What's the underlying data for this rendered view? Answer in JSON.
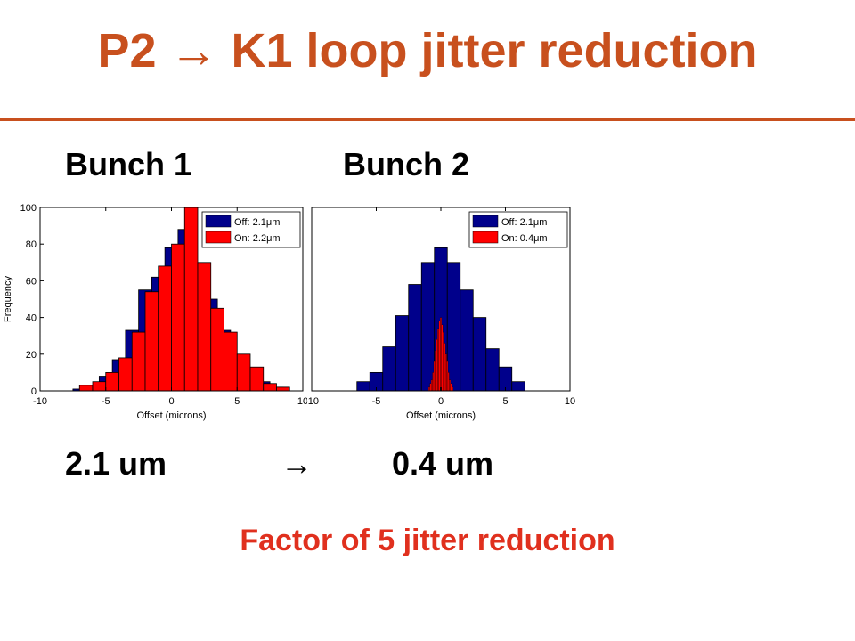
{
  "slide": {
    "title": "P2 → K1 loop jitter reduction",
    "bunch1_label": "Bunch 1",
    "bunch2_label": "Bunch 2",
    "value_before": "2.1 um",
    "arrow": "→",
    "value_after": "0.4 um",
    "conclusion": "Factor of 5 jitter reduction",
    "colors": {
      "title": "#c8501e",
      "conclusion": "#e0301e",
      "off": "#00008b",
      "on": "#ff0000"
    }
  },
  "chart_data": [
    {
      "type": "bar",
      "panel": "Bunch 1",
      "xlabel": "Offset (microns)",
      "ylabel": "Frequency",
      "xlim": [
        -10,
        10
      ],
      "ylim": [
        0,
        100
      ],
      "xticks": [
        -10,
        -5,
        0,
        5,
        10
      ],
      "yticks": [
        0,
        20,
        40,
        60,
        80,
        100
      ],
      "legend_position": "top-right",
      "series": [
        {
          "name": "Off: 2.1μm",
          "color": "#00008b",
          "bin_width": 1,
          "bins": [
            [
              -7,
              1
            ],
            [
              -6,
              3
            ],
            [
              -5,
              8
            ],
            [
              -4,
              17
            ],
            [
              -3,
              33
            ],
            [
              -2,
              55
            ],
            [
              -1,
              62
            ],
            [
              0,
              78
            ],
            [
              1,
              88
            ],
            [
              2,
              64
            ],
            [
              3,
              50
            ],
            [
              4,
              33
            ],
            [
              5,
              18
            ],
            [
              6,
              10
            ],
            [
              7,
              5
            ],
            [
              8,
              2
            ]
          ]
        },
        {
          "name": "On: 2.2μm",
          "color": "#ff0000",
          "bin_width": 1,
          "bins": [
            [
              -6.5,
              3
            ],
            [
              -5.5,
              5
            ],
            [
              -4.5,
              10
            ],
            [
              -3.5,
              18
            ],
            [
              -2.5,
              32
            ],
            [
              -1.5,
              54
            ],
            [
              -0.5,
              68
            ],
            [
              0.5,
              80
            ],
            [
              1.5,
              100
            ],
            [
              2.5,
              70
            ],
            [
              3.5,
              45
            ],
            [
              4.5,
              32
            ],
            [
              5.5,
              20
            ],
            [
              6.5,
              13
            ],
            [
              7.5,
              4
            ],
            [
              8.5,
              2
            ]
          ]
        }
      ]
    },
    {
      "type": "bar",
      "panel": "Bunch 2",
      "xlabel": "Offset (microns)",
      "ylabel": "",
      "xlim": [
        -10,
        10
      ],
      "ylim": [
        0,
        100
      ],
      "xticks": [
        -10,
        -5,
        0,
        5,
        10
      ],
      "yticks": [],
      "legend_position": "top-right",
      "series": [
        {
          "name": "Off: 2.1μm",
          "color": "#00008b",
          "bin_width": 1,
          "bins": [
            [
              -6,
              5
            ],
            [
              -5,
              10
            ],
            [
              -4,
              24
            ],
            [
              -3,
              41
            ],
            [
              -2,
              58
            ],
            [
              -1,
              70
            ],
            [
              0,
              78
            ],
            [
              1,
              70
            ],
            [
              2,
              55
            ],
            [
              3,
              40
            ],
            [
              4,
              23
            ],
            [
              5,
              13
            ],
            [
              6,
              5
            ]
          ]
        },
        {
          "name": "On: 0.4μm",
          "color": "#ff0000",
          "bin_width": 0.1,
          "bins": [
            [
              -0.8,
              4
            ],
            [
              -0.7,
              6
            ],
            [
              -0.6,
              10
            ],
            [
              -0.5,
              16
            ],
            [
              -0.4,
              22
            ],
            [
              -0.3,
              28
            ],
            [
              -0.2,
              34
            ],
            [
              -0.1,
              38
            ],
            [
              0,
              40
            ],
            [
              0.1,
              36
            ],
            [
              0.2,
              32
            ],
            [
              0.3,
              26
            ],
            [
              0.4,
              20
            ],
            [
              0.5,
              16
            ],
            [
              0.6,
              10
            ],
            [
              0.7,
              6
            ],
            [
              0.8,
              4
            ],
            [
              0.9,
              2
            ],
            [
              -0.9,
              2
            ]
          ]
        }
      ]
    }
  ]
}
